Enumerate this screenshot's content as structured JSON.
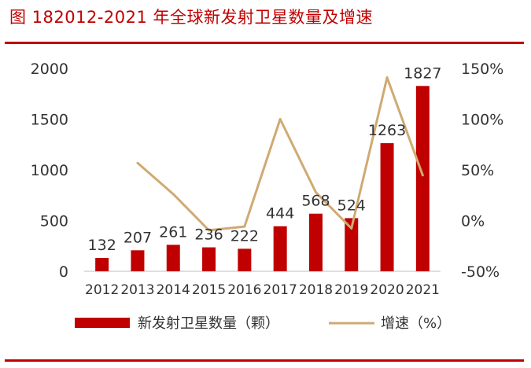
{
  "chart_data": {
    "type": "bar",
    "title": "图 182012-2021 年全球新发射卫星数量及增速",
    "categories": [
      "2012",
      "2013",
      "2014",
      "2015",
      "2016",
      "2017",
      "2018",
      "2019",
      "2020",
      "2021"
    ],
    "series": [
      {
        "name": "新发射卫星数量（颗）",
        "type": "bar",
        "axis": "left",
        "color": "#c00000",
        "values": [
          132,
          207,
          261,
          236,
          222,
          444,
          568,
          524,
          1263,
          1827
        ],
        "labels": [
          "132",
          "207",
          "261",
          "236",
          "222",
          "444",
          "568",
          "524",
          "1263",
          "1827"
        ]
      },
      {
        "name": "增速（%）",
        "type": "line",
        "axis": "right",
        "color": "#cfaa72",
        "values": [
          null,
          56.8,
          26.1,
          -9.6,
          -5.9,
          100.0,
          27.9,
          -7.7,
          141.0,
          44.7
        ]
      }
    ],
    "y_left": {
      "min": 0,
      "max": 2000,
      "ticks": [
        0,
        500,
        1000,
        1500,
        2000
      ],
      "tick_labels": [
        "0",
        "500",
        "1000",
        "1500",
        "2000"
      ]
    },
    "y_right": {
      "min": -50,
      "max": 150,
      "ticks": [
        -50,
        0,
        50,
        100,
        150
      ],
      "tick_labels": [
        "-50%",
        "0%",
        "50%",
        "100%",
        "150%"
      ]
    },
    "grid": false,
    "legend_position": "bottom"
  }
}
